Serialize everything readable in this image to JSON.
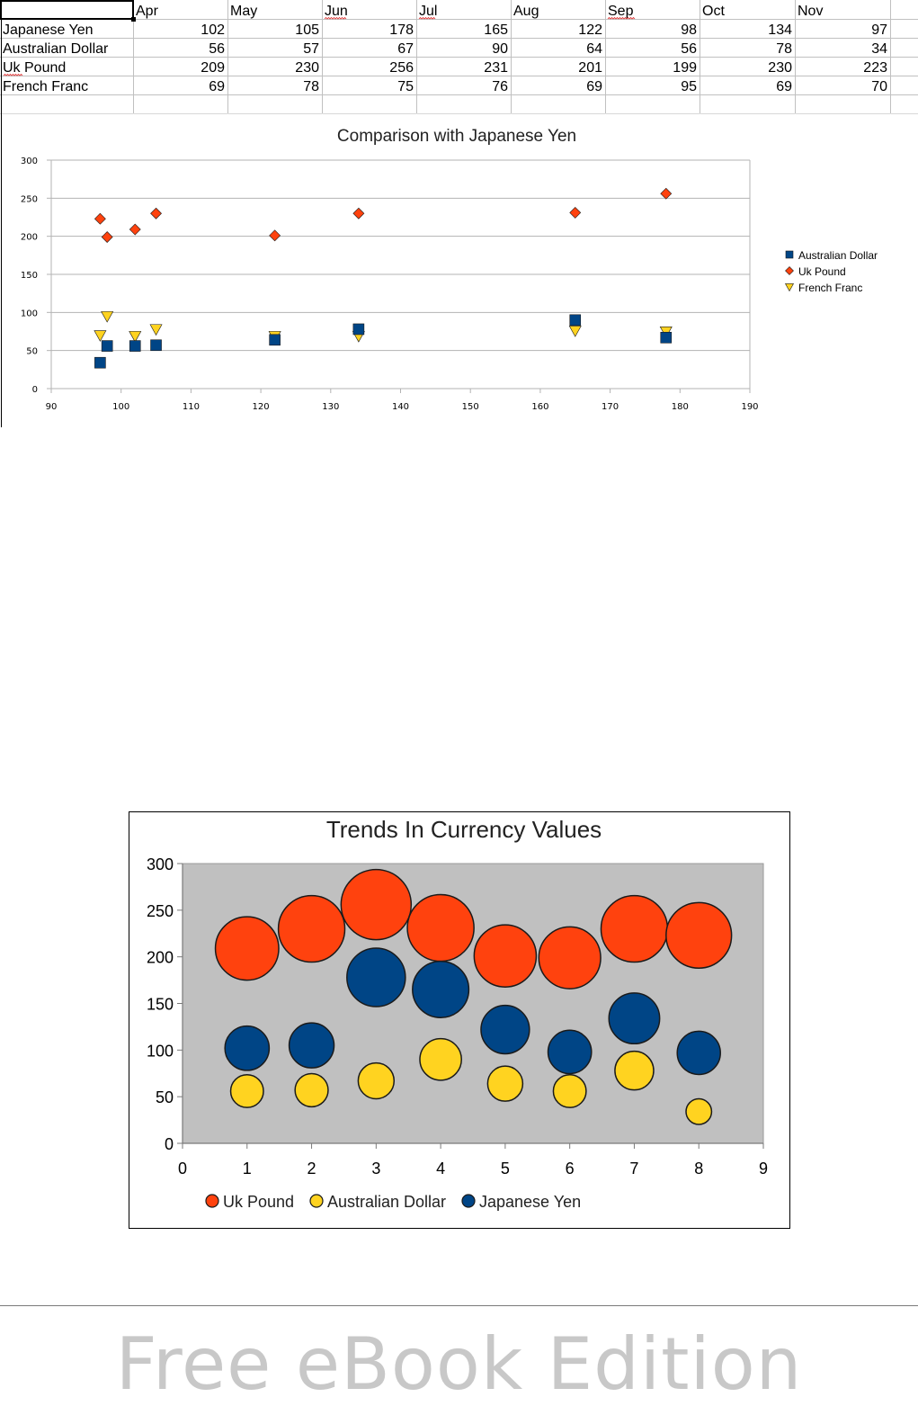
{
  "spreadsheet": {
    "headers": [
      "",
      "Apr",
      "May",
      "Jun",
      "Jul",
      "Aug",
      "Sep",
      "Oct",
      "Nov"
    ],
    "rows": [
      {
        "label": "Japanese Yen",
        "values": [
          102,
          105,
          178,
          165,
          122,
          98,
          134,
          97
        ]
      },
      {
        "label": "Australian Dollar",
        "values": [
          56,
          57,
          67,
          90,
          64,
          56,
          78,
          34
        ]
      },
      {
        "label": "Uk Pound",
        "values": [
          209,
          230,
          256,
          231,
          201,
          199,
          230,
          223
        ]
      },
      {
        "label": "French Franc",
        "values": [
          69,
          78,
          75,
          76,
          69,
          95,
          69,
          70
        ]
      }
    ]
  },
  "chart_data": [
    {
      "type": "scatter",
      "title": "Comparison with Japanese Yen",
      "xlabel": "",
      "ylabel": "",
      "xlim": [
        90,
        190
      ],
      "ylim": [
        0,
        300
      ],
      "xticks": [
        90,
        100,
        110,
        120,
        130,
        140,
        150,
        160,
        170,
        180,
        190
      ],
      "yticks": [
        0,
        50,
        100,
        150,
        200,
        250,
        300
      ],
      "grid": true,
      "legend_position": "right",
      "x": [
        102,
        105,
        178,
        165,
        122,
        98,
        134,
        97
      ],
      "series": [
        {
          "name": "Australian Dollar",
          "marker": "square",
          "color": "#004586",
          "values": [
            56,
            57,
            67,
            90,
            64,
            56,
            78,
            34
          ]
        },
        {
          "name": "Uk Pound",
          "marker": "diamond",
          "color": "#ff420e",
          "values": [
            209,
            230,
            256,
            231,
            201,
            199,
            230,
            223
          ]
        },
        {
          "name": "French Franc",
          "marker": "triangle-down",
          "color": "#ffd320",
          "values": [
            69,
            78,
            75,
            76,
            69,
            95,
            69,
            70
          ]
        }
      ]
    },
    {
      "type": "bubble",
      "title": "Trends In Currency Values",
      "xlim": [
        0,
        9
      ],
      "ylim": [
        0,
        300
      ],
      "xticks": [
        0,
        1,
        2,
        3,
        4,
        5,
        6,
        7,
        8,
        9
      ],
      "yticks": [
        0,
        50,
        100,
        150,
        200,
        250,
        300
      ],
      "background": "#c0c0c0",
      "legend_position": "bottom",
      "x": [
        1,
        2,
        3,
        4,
        5,
        6,
        7,
        8
      ],
      "series": [
        {
          "name": "Uk Pound",
          "color": "#ff420e",
          "values": [
            209,
            230,
            256,
            231,
            201,
            199,
            230,
            223
          ]
        },
        {
          "name": "Australian Dollar",
          "color": "#ffd320",
          "values": [
            56,
            57,
            67,
            90,
            64,
            56,
            78,
            34
          ]
        },
        {
          "name": "Japanese Yen",
          "color": "#004586",
          "values": [
            102,
            105,
            178,
            165,
            122,
            98,
            134,
            97
          ]
        }
      ]
    }
  ],
  "footer": {
    "text": "Free eBook Edition"
  }
}
